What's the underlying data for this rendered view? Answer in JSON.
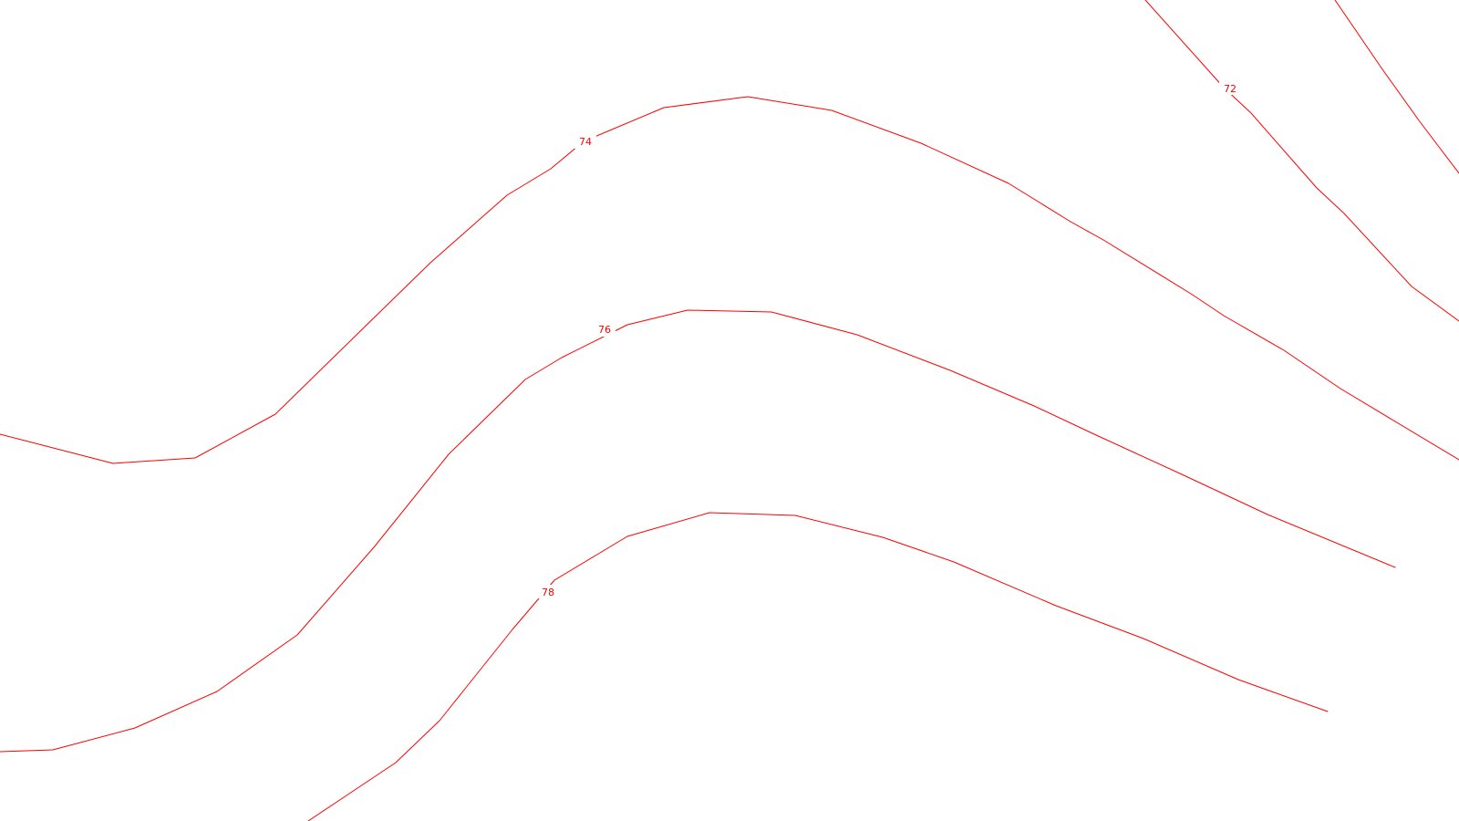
{
  "map": {
    "line_color": "#ff0000",
    "background_color": "#ffffff",
    "contours": [
      {
        "label": "72"
      },
      {
        "label": "74"
      },
      {
        "label": "76"
      },
      {
        "label": "78"
      }
    ]
  }
}
